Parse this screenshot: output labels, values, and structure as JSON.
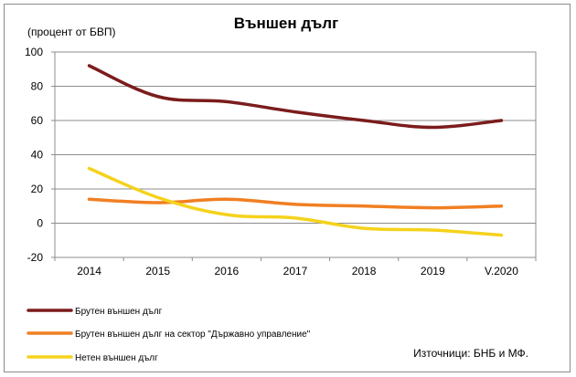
{
  "chart_data": {
    "type": "line",
    "title": "Външен дълг",
    "unit_label": "(процент от БВП)",
    "categories": [
      "2014",
      "2015",
      "2016",
      "2017",
      "2018",
      "2019",
      "V.2020"
    ],
    "ylim": [
      -20,
      100
    ],
    "yticks": [
      -20,
      0,
      20,
      40,
      60,
      80,
      100
    ],
    "grid": true,
    "legend_position": "bottom-left",
    "series": [
      {
        "name": "Брутен външен дълг",
        "color": "#7b1c1c",
        "values": [
          92,
          74,
          71,
          65,
          60,
          56,
          60
        ]
      },
      {
        "name": "Брутен външен дълг на сектор \"Държавно управление\"",
        "color": "#f07f22",
        "values": [
          14,
          12,
          14,
          11,
          10,
          9,
          10
        ]
      },
      {
        "name": "Нетен външен дълг",
        "color": "#f5d21c",
        "values": [
          32,
          15,
          5,
          3,
          -3,
          -4,
          -7
        ]
      }
    ],
    "source": "Източници: БНБ и МФ."
  }
}
